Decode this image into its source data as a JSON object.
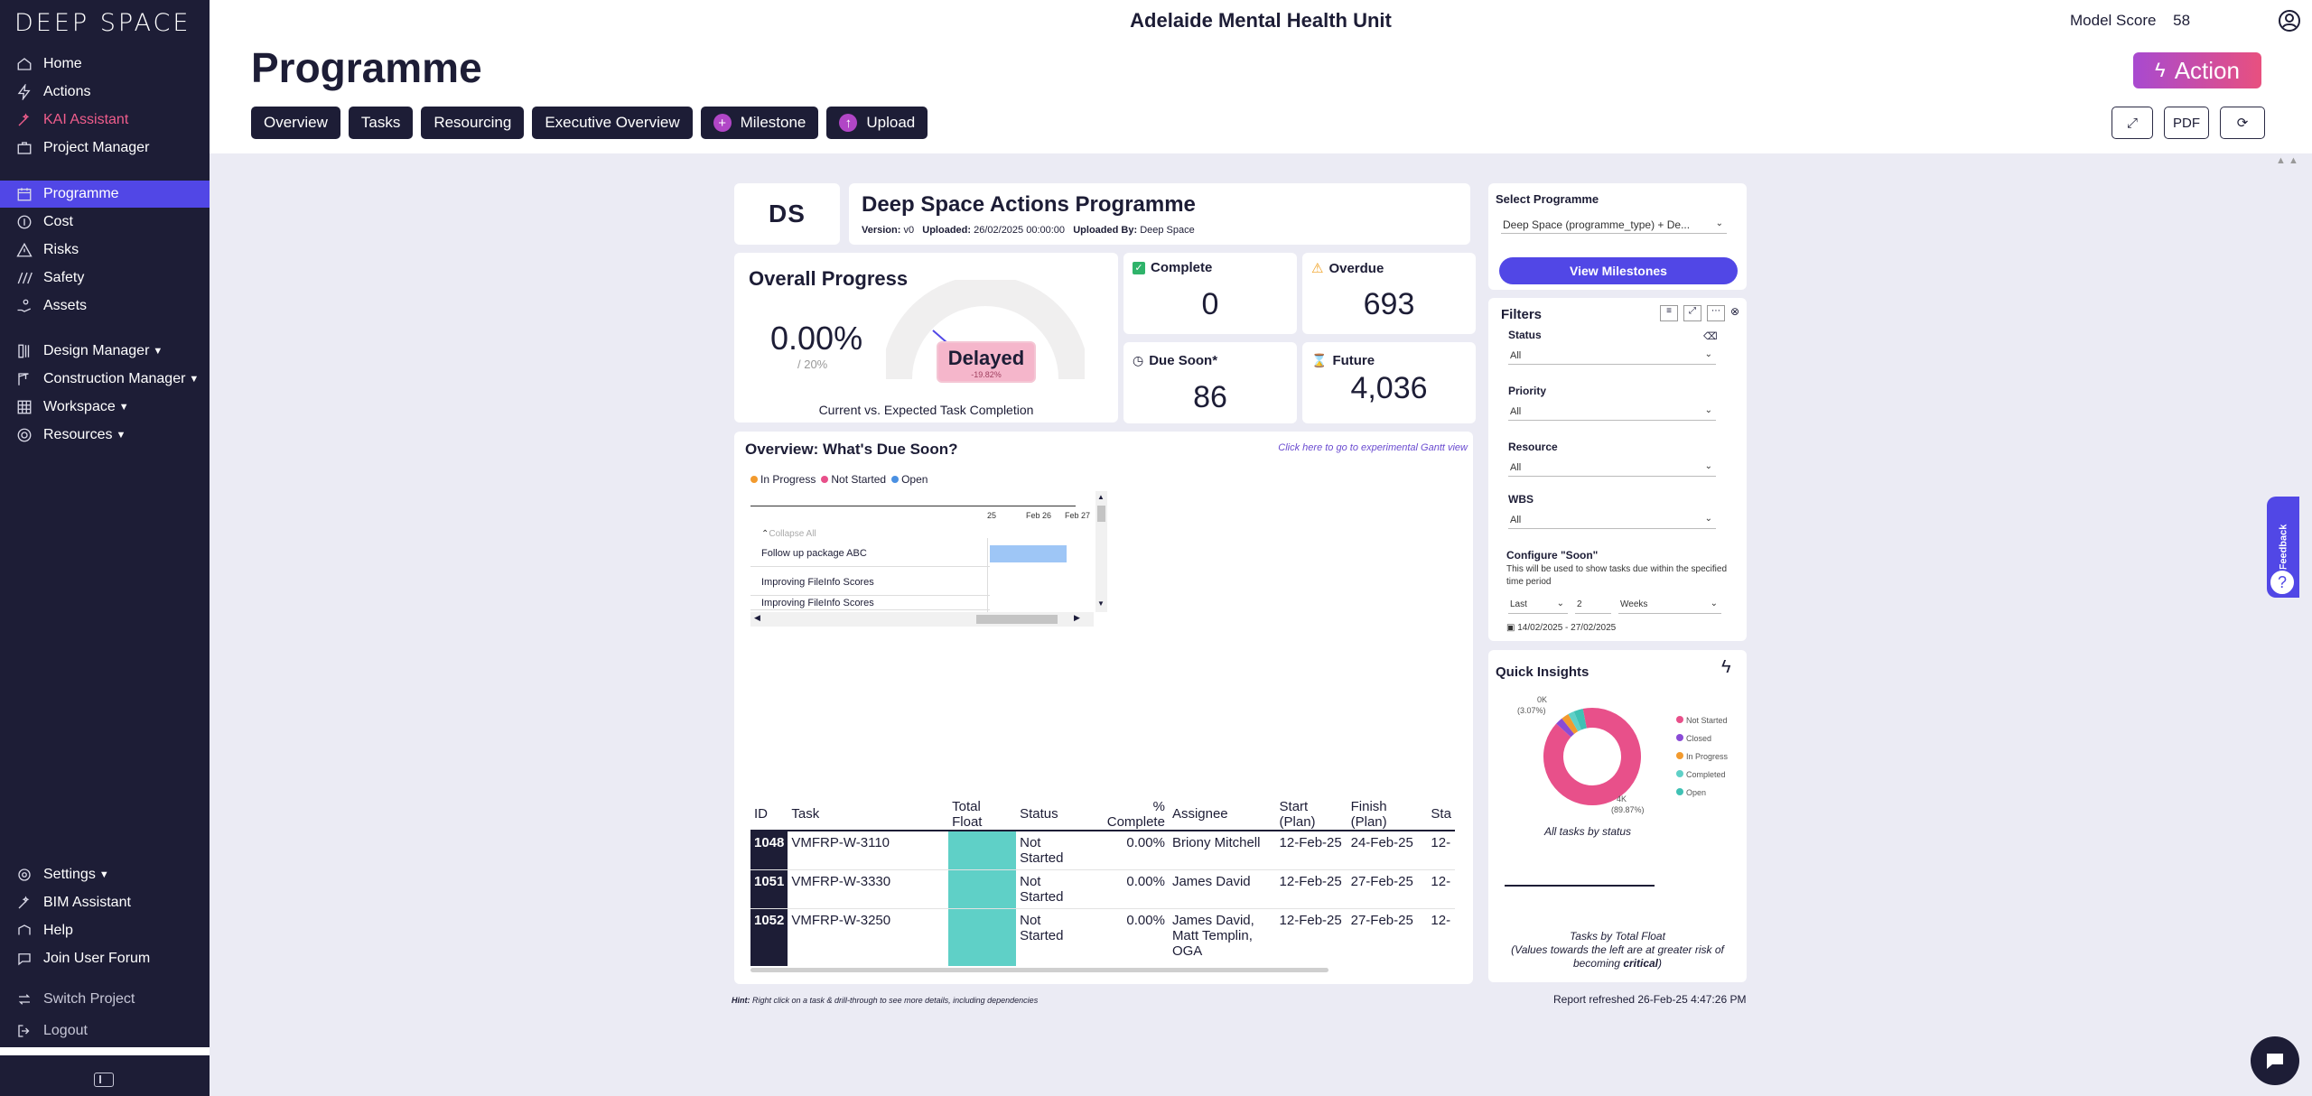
{
  "app": {
    "logo": "DEEP SPACE",
    "unit_title": "Adelaide Mental Health Unit",
    "model_score_label": "Model Score",
    "model_score_value": "58",
    "page_title": "Programme",
    "action_label": "Action"
  },
  "sidebar": {
    "items": [
      {
        "label": "Home",
        "icon": "home-icon"
      },
      {
        "label": "Actions",
        "icon": "bolt-icon"
      },
      {
        "label": "KAI Assistant",
        "icon": "wand-icon"
      },
      {
        "label": "Project Manager",
        "icon": "briefcase-icon"
      },
      {
        "label": "Programme",
        "icon": "calendar-icon"
      },
      {
        "label": "Cost",
        "icon": "coin-icon"
      },
      {
        "label": "Risks",
        "icon": "warning-icon"
      },
      {
        "label": "Safety",
        "icon": "stripes-icon"
      },
      {
        "label": "Assets",
        "icon": "hand-coin-icon"
      },
      {
        "label": "Design Manager",
        "icon": "ruler-icon"
      },
      {
        "label": "Construction Manager",
        "icon": "crane-icon"
      },
      {
        "label": "Workspace",
        "icon": "grid-icon"
      },
      {
        "label": "Resources",
        "icon": "cog-icon"
      }
    ],
    "bottom_items": [
      {
        "label": "Settings",
        "icon": "gear-icon"
      },
      {
        "label": "BIM Assistant",
        "icon": "wand-icon"
      },
      {
        "label": "Help",
        "icon": "help-icon"
      },
      {
        "label": "Join User Forum",
        "icon": "chat-icon"
      },
      {
        "label": "Switch Project",
        "icon": "swap-icon"
      },
      {
        "label": "Logout",
        "icon": "logout-icon"
      }
    ]
  },
  "tabs": [
    "Overview",
    "Tasks",
    "Resourcing",
    "Executive Overview",
    "Milestone",
    "Upload"
  ],
  "toolbar": {
    "pdf_label": "PDF"
  },
  "report": {
    "ds_logo": "DS",
    "programme_title": "Deep Space Actions Programme",
    "version_label": "Version:",
    "version_value": "v0",
    "uploaded_label": "Uploaded:",
    "uploaded_value": "26/02/2025 00:00:00",
    "uploaded_by_label": "Uploaded By:",
    "uploaded_by_value": "Deep Space",
    "overall_progress_title": "Overall Progress",
    "progress_value": "0.00%",
    "progress_expected": "/ 20%",
    "gauge_status": "Delayed",
    "gauge_delta": "-19.82%",
    "gauge_caption": "Current vs. Expected Task Completion",
    "stats": {
      "complete_label": "Complete",
      "complete_value": "0",
      "overdue_label": "Overdue",
      "overdue_value": "693",
      "due_soon_label": "Due Soon*",
      "due_soon_value": "86",
      "future_label": "Future",
      "future_value": "4,036"
    },
    "due_soon_title": "Overview: What's Due Soon?",
    "gantt_link": "Click here to go to experimental Gantt view",
    "legend": [
      {
        "label": "In Progress",
        "color": "#f29a2e"
      },
      {
        "label": "Not Started",
        "color": "#e8508a"
      },
      {
        "label": "Open",
        "color": "#4a90e2"
      }
    ],
    "gantt_dates": [
      "25",
      "Feb 26",
      "Feb 27"
    ],
    "gantt_collapse": "Collapse All",
    "gantt_rows": [
      "Follow up package ABC",
      "Improving FileInfo Scores",
      "Improving FileInfo Scores"
    ],
    "table_headers": [
      "ID",
      "Task",
      "Total Float",
      "Status",
      "% Complete",
      "Assignee",
      "Start (Plan)",
      "Finish (Plan)",
      "Sta"
    ],
    "table_rows": [
      {
        "id": "1048",
        "task": "VMFRP-W-3110",
        "status": "Not Started",
        "pct": "0.00%",
        "assignee": "Briony Mitchell",
        "start": "12-Feb-25",
        "finish": "24-Feb-25",
        "sta": "12-"
      },
      {
        "id": "1051",
        "task": "VMFRP-W-3330",
        "status": "Not Started",
        "pct": "0.00%",
        "assignee": "James David",
        "start": "12-Feb-25",
        "finish": "27-Feb-25",
        "sta": "12-"
      },
      {
        "id": "1052",
        "task": "VMFRP-W-3250",
        "status": "Not Started",
        "pct": "0.00%",
        "assignee": "James David, Matt Templin, OGA",
        "start": "12-Feb-25",
        "finish": "27-Feb-25",
        "sta": "12-"
      }
    ],
    "hint_label": "Hint:",
    "hint_text": "Right click on a task & drill-through to see more details, including dependencies",
    "refreshed": "Report refreshed 26-Feb-25 4:47:26 PM"
  },
  "right_panel": {
    "select_programme_label": "Select Programme",
    "select_programme_value": "Deep Space (programme_type) + De...",
    "view_milestones": "View Milestones",
    "filters_title": "Filters",
    "filters": [
      {
        "label": "Status",
        "value": "All"
      },
      {
        "label": "Priority",
        "value": "All"
      },
      {
        "label": "Resource",
        "value": "All"
      },
      {
        "label": "WBS",
        "value": "All"
      }
    ],
    "configure_title": "Configure \"Soon\"",
    "configure_desc": "This will be used to show tasks due within the specified time period",
    "period_mode": "Last",
    "period_count": "2",
    "period_unit": "Weeks",
    "date_range": "14/02/2025 - 27/02/2025",
    "insights_title": "Quick Insights",
    "donut_top_label": "0K",
    "donut_top_pct": "(3.07%)",
    "donut_bottom_label": "4K",
    "donut_bottom_pct": "(89.87%)",
    "donut_legend": [
      {
        "label": "Not Started",
        "color": "#e8508a"
      },
      {
        "label": "Closed",
        "color": "#8a4bd6"
      },
      {
        "label": "In Progress",
        "color": "#f29a2e"
      },
      {
        "label": "Completed",
        "color": "#5fd0c7"
      },
      {
        "label": "Open",
        "color": "#3fc1b4"
      }
    ],
    "donut_caption": "All tasks by status",
    "float_caption_1": "Tasks by Total Float",
    "float_caption_2": "(Values towards the left are at greater risk of",
    "float_caption_3": "becoming",
    "float_caption_bold": "critical",
    "float_caption_end": ")"
  },
  "feedback_label": "Feedback",
  "chart_data": {
    "type": "pie",
    "categories": [
      "Not Started",
      "Closed",
      "In Progress",
      "Completed",
      "Open"
    ],
    "values": [
      89.87,
      2.5,
      2.5,
      2.06,
      3.07
    ]
  }
}
